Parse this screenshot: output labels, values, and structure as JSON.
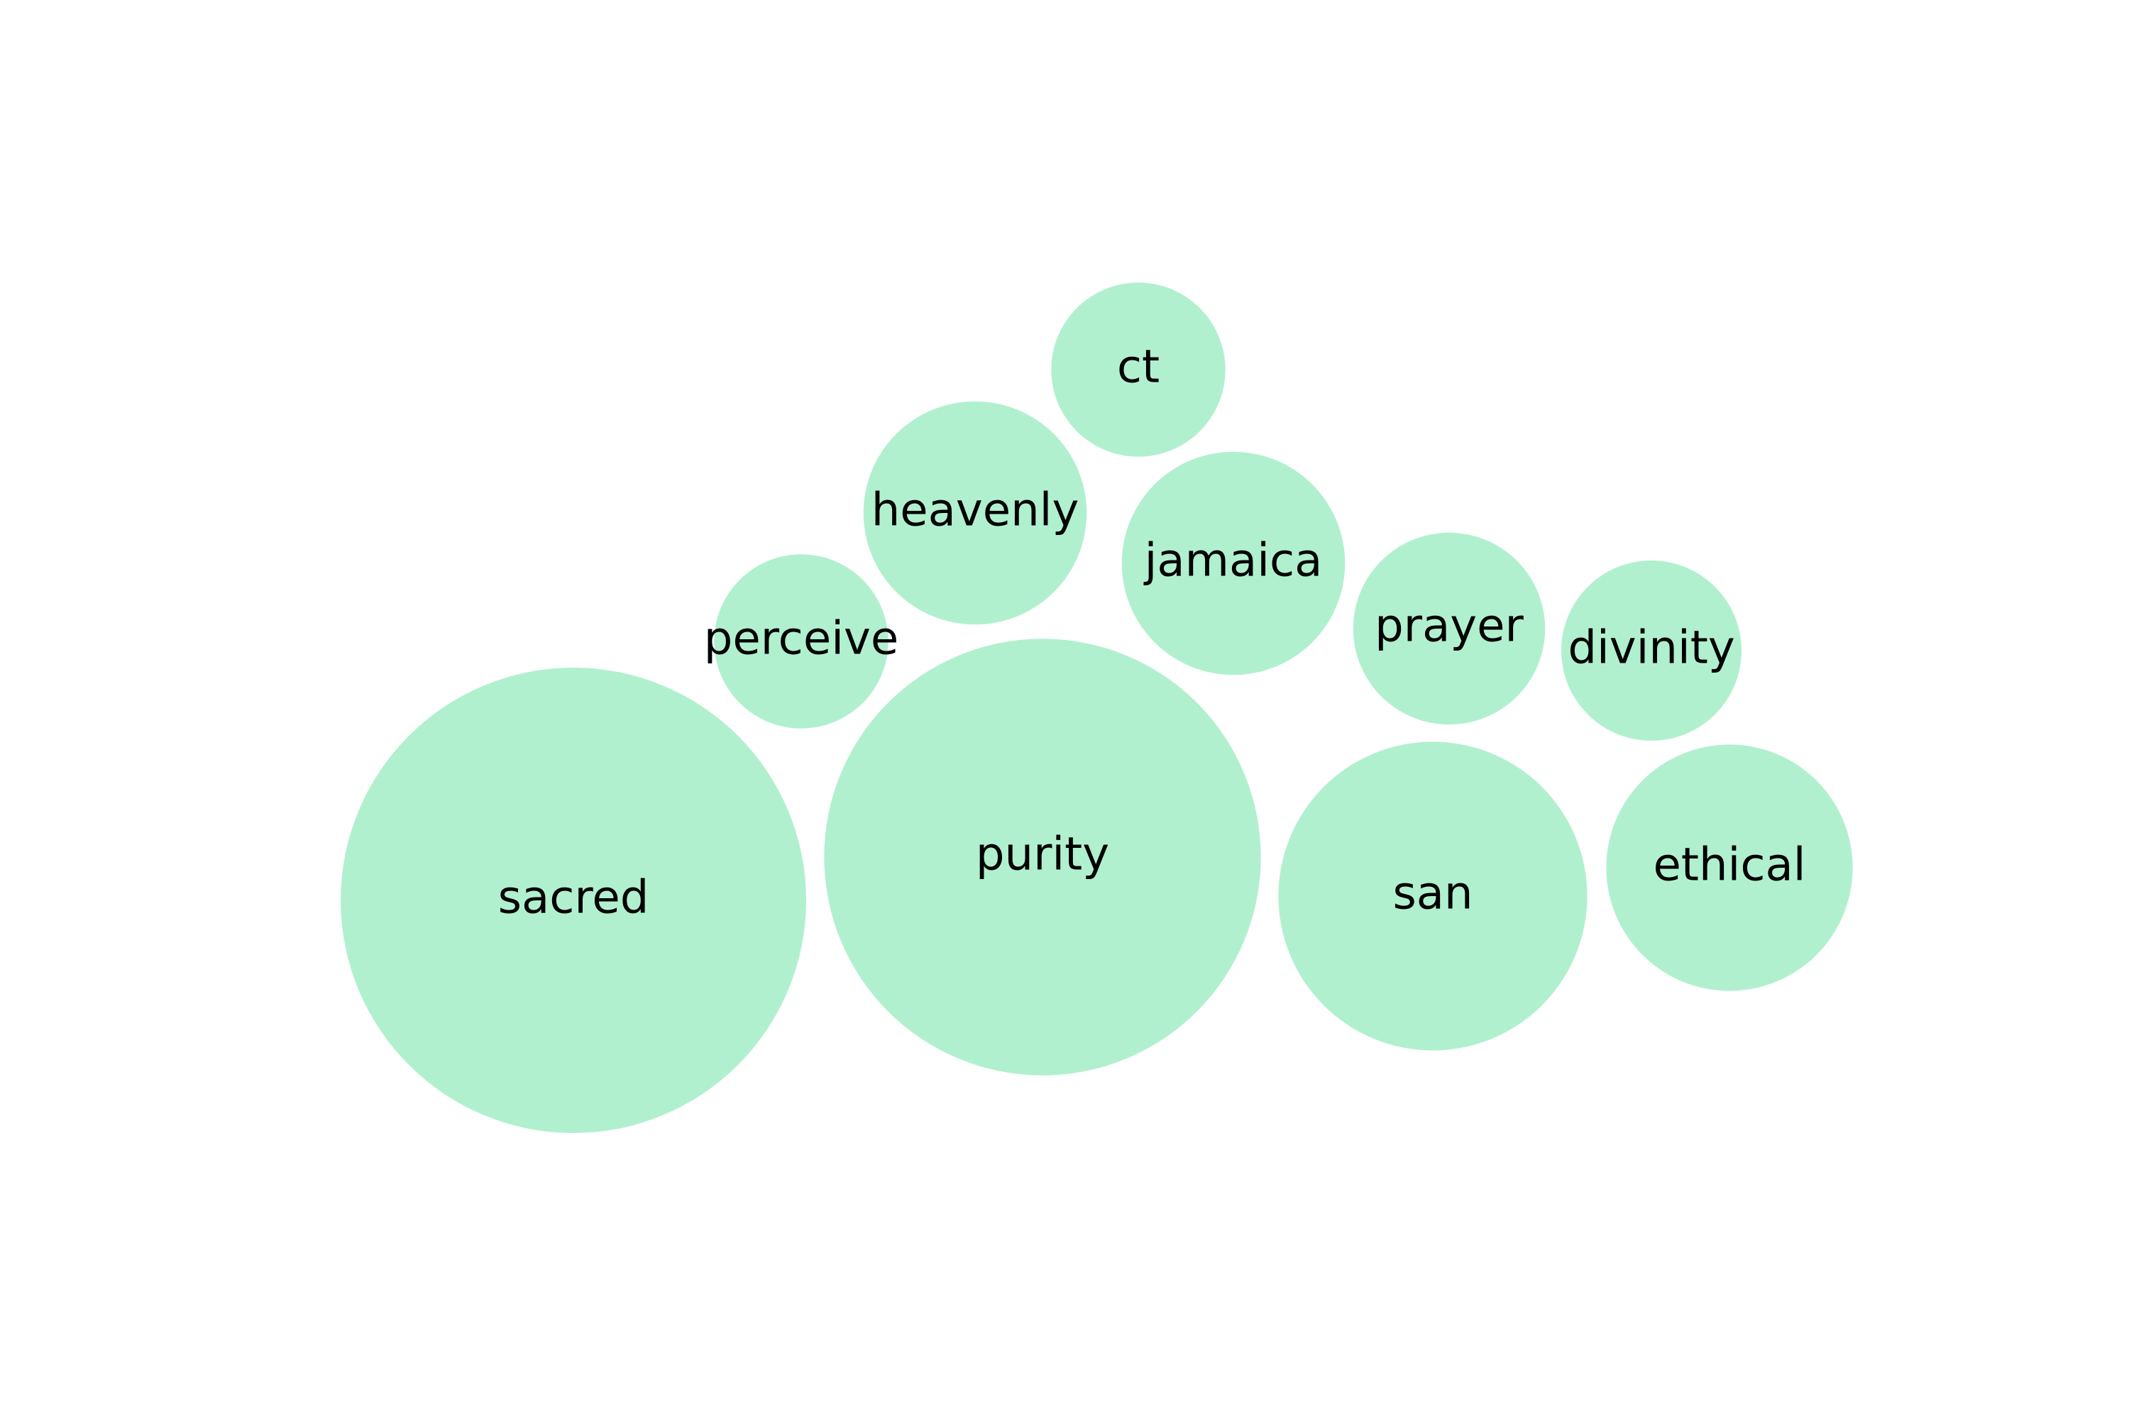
{
  "chart_data": {
    "type": "bubble",
    "bubble_color": "#b1f0cf",
    "bubbles": [
      {
        "label": "sacred",
        "value": 100
      },
      {
        "label": "purity",
        "value": 88
      },
      {
        "label": "san",
        "value": 44
      },
      {
        "label": "ethical",
        "value": 28
      },
      {
        "label": "heavenly",
        "value": 23
      },
      {
        "label": "jamaica",
        "value": 23
      },
      {
        "label": "prayer",
        "value": 17
      },
      {
        "label": "divinity",
        "value": 15
      },
      {
        "label": "perceive",
        "value": 14
      },
      {
        "label": "ct",
        "value": 14
      }
    ]
  }
}
